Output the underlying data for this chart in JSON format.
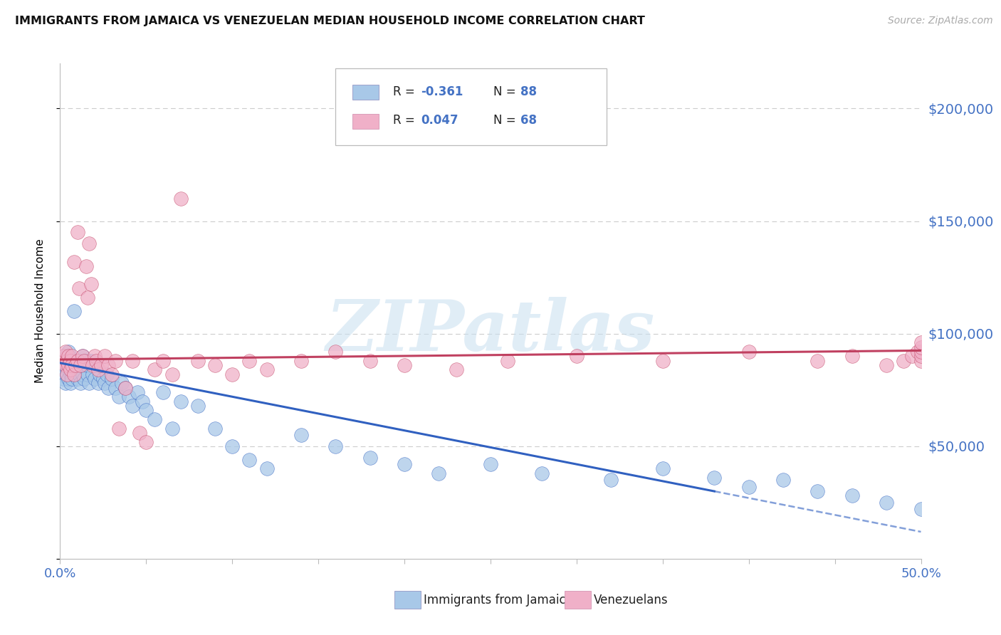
{
  "title": "IMMIGRANTS FROM JAMAICA VS VENEZUELAN MEDIAN HOUSEHOLD INCOME CORRELATION CHART",
  "source": "Source: ZipAtlas.com",
  "ylabel": "Median Household Income",
  "yticks": [
    0,
    50000,
    100000,
    150000,
    200000
  ],
  "ytick_labels": [
    "",
    "$50,000",
    "$100,000",
    "$150,000",
    "$200,000"
  ],
  "color_jamaica": "#a8c8e8",
  "color_venezuela": "#f0b0c8",
  "color_trend_jamaica": "#3060c0",
  "color_trend_venezuela": "#c04060",
  "color_axis": "#4472c4",
  "color_grid": "#cccccc",
  "watermark_text": "ZIPatlas",
  "watermark_color": "#c8dff0",
  "legend_label_1": "Immigrants from Jamaica",
  "legend_label_2": "Venezuelans",
  "r1": "-0.361",
  "n1": "88",
  "r2": "0.047",
  "n2": "68",
  "xlim": [
    0,
    0.5
  ],
  "ylim": [
    0,
    220000
  ],
  "jamaica_x": [
    0.001,
    0.001,
    0.002,
    0.002,
    0.002,
    0.003,
    0.003,
    0.003,
    0.003,
    0.004,
    0.004,
    0.004,
    0.005,
    0.005,
    0.005,
    0.005,
    0.006,
    0.006,
    0.006,
    0.007,
    0.007,
    0.007,
    0.007,
    0.008,
    0.008,
    0.008,
    0.009,
    0.009,
    0.01,
    0.01,
    0.01,
    0.011,
    0.011,
    0.012,
    0.012,
    0.013,
    0.013,
    0.014,
    0.014,
    0.015,
    0.016,
    0.016,
    0.017,
    0.018,
    0.019,
    0.02,
    0.021,
    0.022,
    0.023,
    0.025,
    0.026,
    0.027,
    0.028,
    0.03,
    0.032,
    0.034,
    0.036,
    0.038,
    0.04,
    0.042,
    0.045,
    0.048,
    0.05,
    0.055,
    0.06,
    0.065,
    0.07,
    0.08,
    0.09,
    0.1,
    0.11,
    0.12,
    0.14,
    0.16,
    0.18,
    0.2,
    0.22,
    0.25,
    0.28,
    0.32,
    0.35,
    0.38,
    0.4,
    0.42,
    0.44,
    0.46,
    0.48,
    0.5
  ],
  "jamaica_y": [
    88000,
    82000,
    90000,
    85000,
    80000,
    88000,
    85000,
    82000,
    78000,
    90000,
    86000,
    82000,
    88000,
    85000,
    80000,
    92000,
    82000,
    88000,
    78000,
    86000,
    82000,
    88000,
    80000,
    110000,
    86000,
    82000,
    88000,
    82000,
    88000,
    85000,
    80000,
    86000,
    82000,
    88000,
    78000,
    90000,
    82000,
    86000,
    80000,
    88000,
    82000,
    86000,
    78000,
    88000,
    82000,
    80000,
    86000,
    78000,
    82000,
    80000,
    78000,
    82000,
    76000,
    80000,
    76000,
    72000,
    78000,
    76000,
    72000,
    68000,
    74000,
    70000,
    66000,
    62000,
    74000,
    58000,
    70000,
    68000,
    58000,
    50000,
    44000,
    40000,
    55000,
    50000,
    45000,
    42000,
    38000,
    42000,
    38000,
    35000,
    40000,
    36000,
    32000,
    35000,
    30000,
    28000,
    25000,
    22000
  ],
  "venezuela_x": [
    0.001,
    0.002,
    0.003,
    0.003,
    0.004,
    0.004,
    0.005,
    0.005,
    0.006,
    0.006,
    0.007,
    0.007,
    0.008,
    0.008,
    0.009,
    0.01,
    0.01,
    0.011,
    0.012,
    0.013,
    0.014,
    0.015,
    0.016,
    0.017,
    0.018,
    0.019,
    0.02,
    0.021,
    0.022,
    0.024,
    0.026,
    0.028,
    0.03,
    0.032,
    0.034,
    0.038,
    0.042,
    0.046,
    0.05,
    0.055,
    0.06,
    0.065,
    0.07,
    0.08,
    0.09,
    0.1,
    0.11,
    0.12,
    0.14,
    0.16,
    0.18,
    0.2,
    0.23,
    0.26,
    0.3,
    0.35,
    0.4,
    0.44,
    0.46,
    0.48,
    0.49,
    0.495,
    0.498,
    0.5,
    0.5,
    0.5,
    0.5,
    0.5
  ],
  "venezuela_y": [
    88000,
    90000,
    86000,
    92000,
    88000,
    82000,
    90000,
    86000,
    88000,
    84000,
    90000,
    86000,
    82000,
    132000,
    86000,
    88000,
    145000,
    120000,
    86000,
    90000,
    88000,
    130000,
    116000,
    140000,
    122000,
    86000,
    90000,
    88000,
    84000,
    86000,
    90000,
    86000,
    82000,
    88000,
    58000,
    76000,
    88000,
    56000,
    52000,
    84000,
    88000,
    82000,
    160000,
    88000,
    86000,
    82000,
    88000,
    84000,
    88000,
    92000,
    88000,
    86000,
    84000,
    88000,
    90000,
    88000,
    92000,
    88000,
    90000,
    86000,
    88000,
    90000,
    92000,
    88000,
    90000,
    92000,
    94000,
    96000
  ],
  "trend_jamaica_start": 0.0,
  "trend_jamaica_solid_end": 0.38,
  "trend_jamaica_dash_end": 0.5,
  "trend_venezuela_start": 0.0,
  "trend_venezuela_end": 0.5
}
